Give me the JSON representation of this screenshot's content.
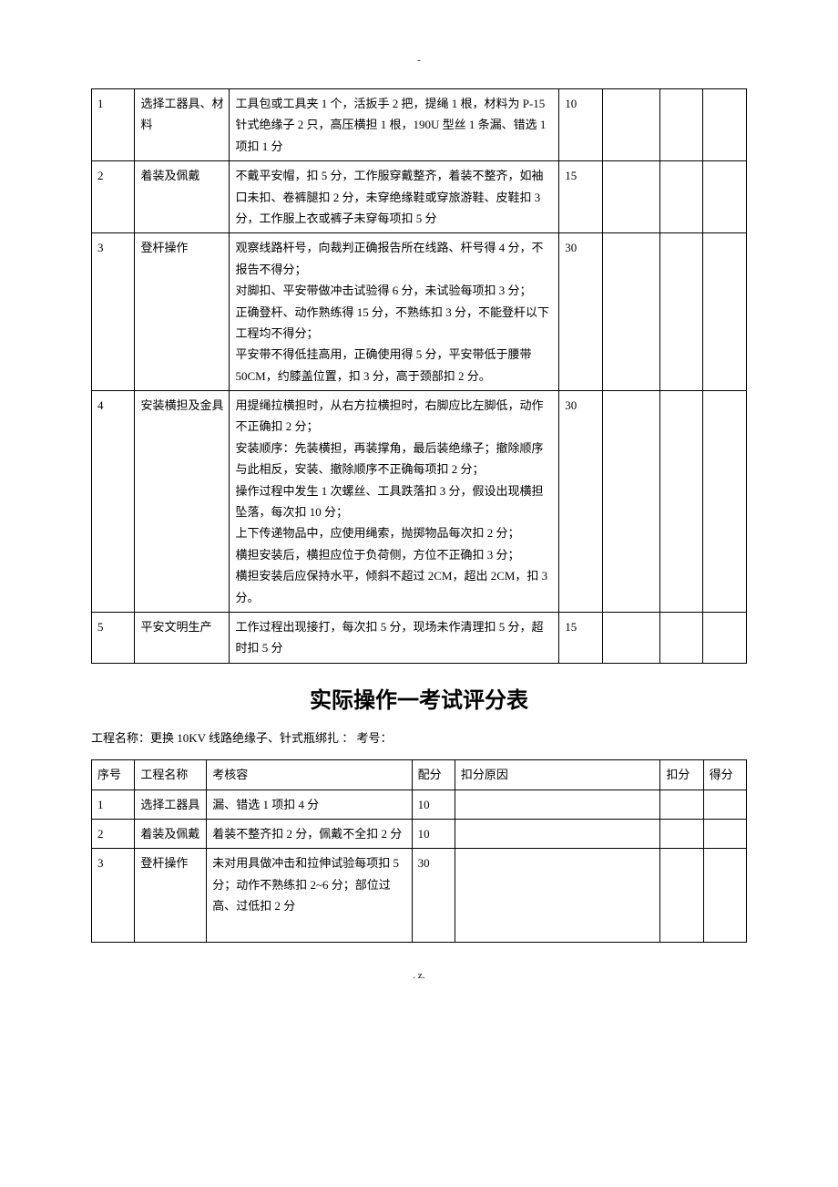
{
  "page_mark_top": "-",
  "page_mark_bottom": ".                                           z.",
  "table1": {
    "rows": [
      {
        "num": "1",
        "name": "选择工器具、材料",
        "content": "工具包或工具夹 1 个，活扳手 2 把，提绳 1 根，材料为 P-15 针式绝缘子 2 只，高压横担 1 根，190U 型丝 1 条漏、错选 1 项扣 1 分",
        "score": "10",
        "reason": "",
        "deduct": "",
        "final": ""
      },
      {
        "num": "2",
        "name": "着装及佩戴",
        "content": "不戴平安帽，扣 5 分，工作服穿戴整齐，着装不整齐，如袖口未扣、卷裤腿扣 2 分，未穿绝缘鞋或穿旅游鞋、皮鞋扣 3 分，工作服上衣或裤子未穿每项扣 5 分",
        "score": "15",
        "reason": "",
        "deduct": "",
        "final": ""
      },
      {
        "num": "3",
        "name": "登杆操作",
        "content": "观察线路杆号，向裁判正确报告所在线路、杆号得 4 分，不报告不得分；\n对脚扣、平安带做冲击试验得 6 分，未试验每项扣 3 分；\n正确登杆、动作熟练得 15 分，不熟练扣 3 分，不能登杆以下工程均不得分；\n平安带不得低挂高用，正确使用得 5 分，平安带低于腰带 50CM，约膝盖位置，扣 3 分，高于颈部扣 2 分。",
        "score": "30",
        "reason": "",
        "deduct": "",
        "final": ""
      },
      {
        "num": "4",
        "name": "安装横担及金具",
        "content": "用提绳拉横担时，从右方拉横担时，右脚应比左脚低，动作不正确扣 2 分；\n安装顺序：先装横担，再装撑角，最后装绝缘子；撤除顺序与此相反，安装、撤除顺序不正确每项扣 2 分；\n操作过程中发生 1 次螺丝、工具跌落扣 3 分，假设出现横担坠落，每次扣 10 分；\n上下传递物品中，应使用绳索，抛掷物品每次扣 2 分；\n横担安装后，横担应位于负荷侧，方位不正确扣 3 分；\n横担安装后应保持水平，倾斜不超过 2CM，超出 2CM，扣 3 分。",
        "score": "30",
        "reason": "",
        "deduct": "",
        "final": ""
      },
      {
        "num": "5",
        "name": "平安文明生产",
        "content": "工作过程出现接打，每次扣 5 分，现场未作清理扣 5 分，超时扣 5 分",
        "score": "15",
        "reason": "",
        "deduct": "",
        "final": ""
      }
    ]
  },
  "section_title": "实际操作一考试评分表",
  "subtitle": "工程名称：更换 10KV 线路绝缘子、针式瓶绑扎      ：    考号：",
  "table2": {
    "headers": {
      "num": "序号",
      "name": "工程名称",
      "content": "考核容",
      "score": "配分",
      "reason": "扣分原因",
      "deduct": "扣分",
      "final": "得分"
    },
    "rows": [
      {
        "num": "1",
        "name": "选择工器具",
        "content": "漏、错选 1 项扣 4 分",
        "score": "10",
        "reason": "",
        "deduct": "",
        "final": ""
      },
      {
        "num": "2",
        "name": "着装及佩戴",
        "content": "着装不整齐扣 2 分，佩戴不全扣 2 分",
        "score": "10",
        "reason": "",
        "deduct": "",
        "final": ""
      },
      {
        "num": "3",
        "name": "登杆操作",
        "content": "未对用具做冲击和拉伸试验每项扣 5 分；动作不熟练扣 2~6 分；部位过高、过低扣 2 分\n\n",
        "score": "30",
        "reason": "",
        "deduct": "",
        "final": ""
      }
    ]
  }
}
